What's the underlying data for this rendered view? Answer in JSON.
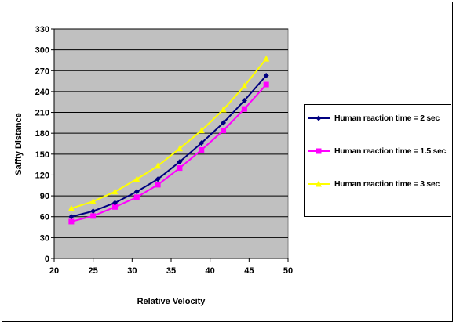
{
  "chart_data": {
    "type": "line",
    "title": "",
    "xlabel": "Relative Velocity",
    "ylabel": "Saffty Distance",
    "xlim": [
      20,
      50
    ],
    "ylim": [
      0,
      330
    ],
    "x_ticks": [
      20,
      25,
      30,
      35,
      40,
      45,
      50
    ],
    "x_tick_labels": [
      "20",
      "25",
      "30",
      "35",
      "40",
      "45",
      "50"
    ],
    "y_ticks": [
      0,
      30,
      60,
      90,
      120,
      150,
      180,
      210,
      240,
      270,
      300,
      330
    ],
    "y_tick_labels": [
      "0",
      "30",
      "60",
      "90",
      "120",
      "150",
      "180",
      "210",
      "240",
      "270",
      "300",
      "330"
    ],
    "grid": "horizontal",
    "plot_background": "#c0c0c0",
    "legend_position": "right",
    "x": [
      22.2,
      25,
      27.8,
      30.6,
      33.3,
      36.1,
      38.9,
      41.7,
      44.4,
      47.2
    ],
    "series": [
      {
        "name": "Human reaction time = 2 sec",
        "color": "#000080",
        "marker": "diamond",
        "values": [
          60,
          68,
          80,
          96,
          114,
          139,
          166,
          195,
          227,
          263
        ]
      },
      {
        "name": "Human reaction time = 1.5 sec",
        "color": "#ff00ff",
        "marker": "square",
        "values": [
          53,
          61,
          74,
          88,
          106,
          130,
          156,
          184,
          215,
          250
        ]
      },
      {
        "name": "Human reaction time = 3 sec",
        "color": "#ffff00",
        "marker": "triangle",
        "values": [
          72,
          82,
          96,
          114,
          133,
          158,
          184,
          214,
          248,
          287
        ]
      }
    ]
  }
}
